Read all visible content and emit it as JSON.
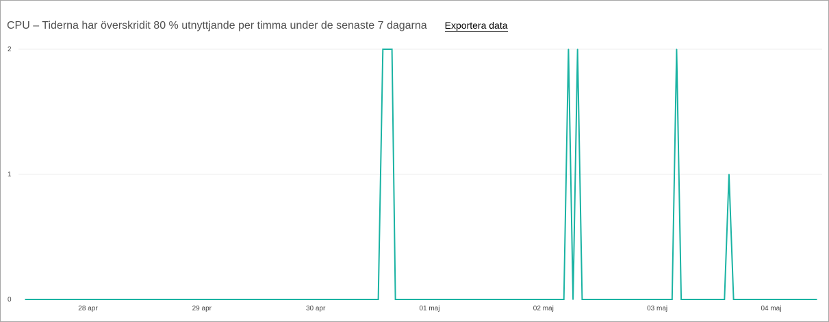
{
  "header": {
    "title": "CPU – Tiderna har överskridit 80 % utnyttjande per timma under de senaste 7 dagarna",
    "export_label": "Exportera data"
  },
  "colors": {
    "line": "#1ab3a3",
    "grid": "#ececec",
    "border": "#a6a6a6",
    "title": "#505050"
  },
  "chart_data": {
    "type": "line",
    "title": "CPU – Tiderna har överskridit 80 % utnyttjande per timma under de senaste 7 dagarna",
    "xlabel": "",
    "ylabel": "",
    "ylim": [
      0,
      2
    ],
    "y_ticks": [
      "0",
      "1",
      "2"
    ],
    "x_ticks": [
      "28 apr",
      "29 apr",
      "30 apr",
      "01 maj",
      "02 maj",
      "03 maj",
      "04 maj"
    ],
    "x_tick_days": [
      1,
      2,
      3,
      4,
      5,
      6,
      7
    ],
    "xlim": [
      0.45,
      7.4
    ],
    "grid": true,
    "legend": "none",
    "series": [
      {
        "x": [
          0.45,
          3.55,
          3.59,
          3.63,
          3.67,
          3.7,
          5.18,
          5.22,
          5.26,
          5.3,
          5.34,
          6.13,
          6.17,
          6.21,
          6.59,
          6.63,
          6.67,
          7.4
        ],
        "y": [
          0,
          0,
          2,
          2,
          2,
          0,
          0,
          2,
          0,
          2,
          0,
          0,
          2,
          0,
          0,
          1,
          0,
          0
        ]
      }
    ]
  }
}
